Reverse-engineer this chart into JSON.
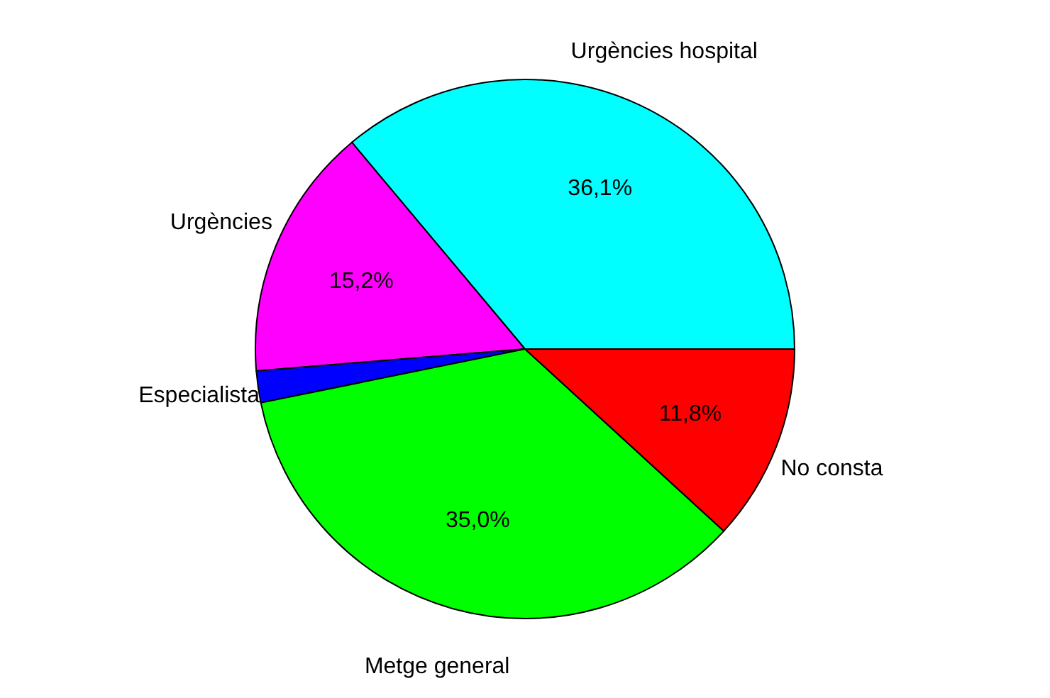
{
  "chart_data": {
    "type": "pie",
    "categories": [
      "Urgències hospital",
      "Urgències",
      "Especialista",
      "Metge general",
      "No consta"
    ],
    "values": [
      36.1,
      15.2,
      1.9,
      35.0,
      11.8
    ],
    "colors": [
      "#00ffff",
      "#ff00ff",
      "#0000ff",
      "#00ff00",
      "#ff0000"
    ],
    "value_labels": [
      "36,1%",
      "15,2%",
      null,
      "35,0%",
      "11,8%"
    ],
    "legend": false
  }
}
